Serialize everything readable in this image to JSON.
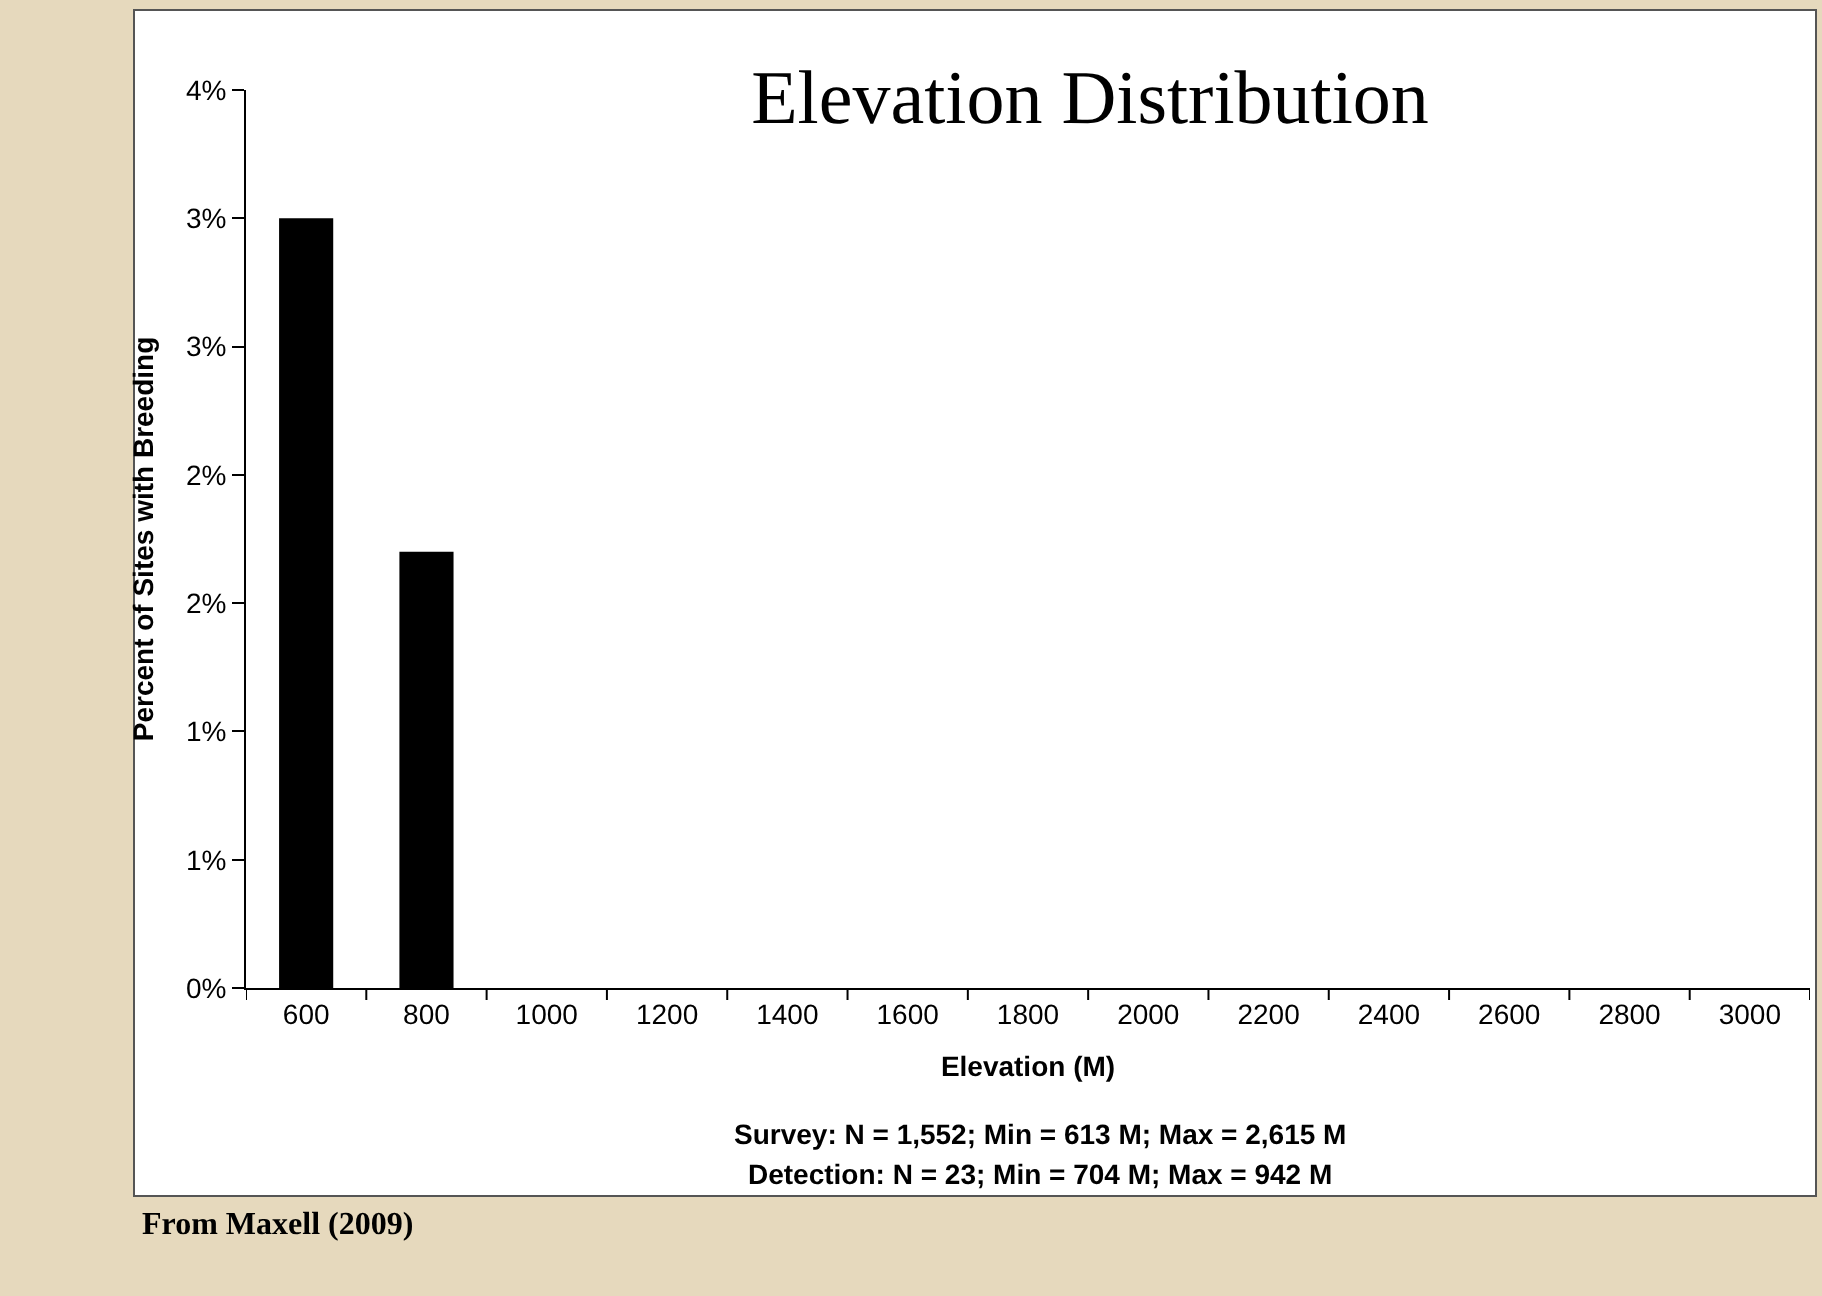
{
  "chart_data": {
    "type": "bar",
    "title": "Elevation Distribution",
    "xlabel": "Elevation (M)",
    "ylabel": "Percent of Sites with Breeding",
    "categories": [
      "600",
      "800",
      "1000",
      "1200",
      "1400",
      "1600",
      "1800",
      "2000",
      "2200",
      "2400",
      "2600",
      "2800",
      "3000"
    ],
    "values": [
      3.0,
      1.7,
      0,
      0,
      0,
      0,
      0,
      0,
      0,
      0,
      0,
      0,
      0
    ],
    "color": "#000000",
    "ylim": [
      0,
      3.5
    ],
    "yticks": [
      {
        "value": 0,
        "label": "0%"
      },
      {
        "value": 0.5,
        "label": "1%"
      },
      {
        "value": 1,
        "label": "1%"
      },
      {
        "value": 1.5,
        "label": "2%"
      },
      {
        "value": 2,
        "label": "2%"
      },
      {
        "value": 2.5,
        "label": "3%"
      },
      {
        "value": 3,
        "label": "3%"
      },
      {
        "value": 3.5,
        "label": "4%"
      }
    ],
    "grid": false,
    "annotations": [
      "Survey: N = 1,552; Min = 613 M; Max = 2,615 M",
      "Detection: N = 23; Min = 704 M; Max = 942 M",
      "From Maxell (2009)"
    ]
  }
}
